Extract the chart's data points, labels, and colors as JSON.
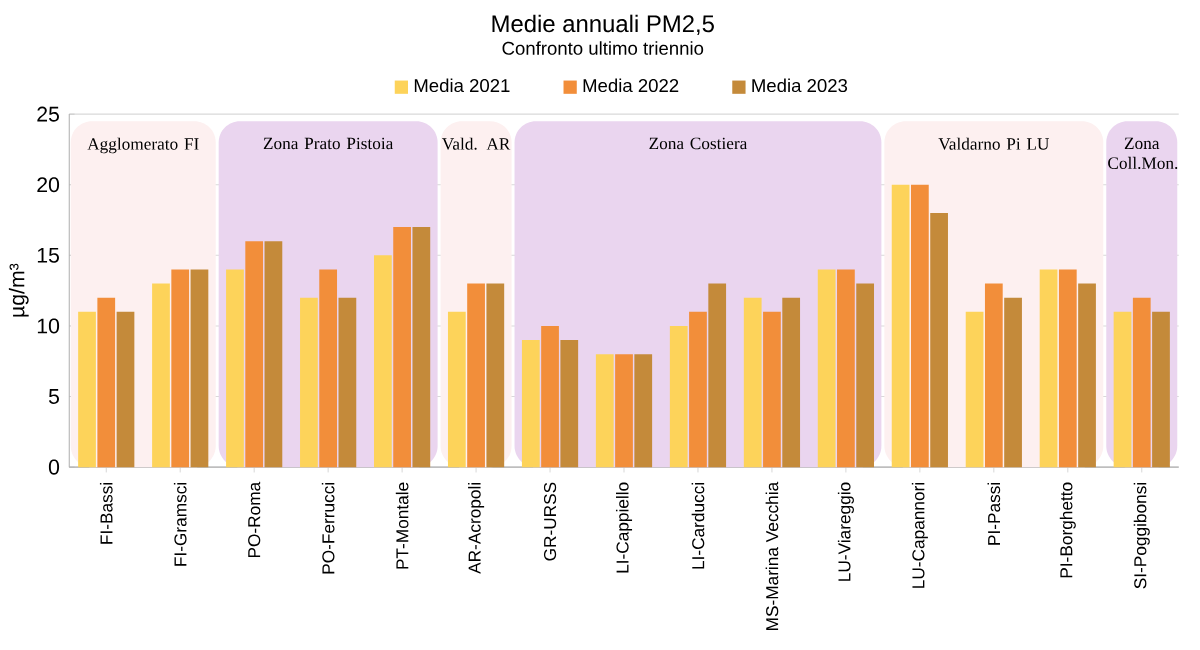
{
  "chart_data": {
    "type": "bar",
    "title": "Medie annuali PM2,5",
    "subtitle": "Confronto ultimo triennio",
    "ylabel": "µg/m³",
    "categories": [
      "FI-Bassi",
      "FI-Gramsci",
      "PO-Roma",
      "PO-Ferrucci",
      "PT-Montale",
      "AR-Acropoli",
      "GR-URSS",
      "LI-Cappiello",
      "LI-Carducci",
      "MS-Marina Vecchia",
      "LU-Viareggio",
      "LU-Capannori",
      "PI-Passi",
      "PI-Borghetto",
      "SI-Poggibonsi"
    ],
    "series": [
      {
        "name": "Media 2021",
        "color": "#fdd35a",
        "values": [
          11,
          13,
          14,
          12,
          15,
          11,
          9,
          8,
          10,
          12,
          14,
          20,
          11,
          14,
          11
        ]
      },
      {
        "name": "Media 2022",
        "color": "#f28e3a",
        "values": [
          12,
          14,
          16,
          14,
          17,
          13,
          10,
          8,
          11,
          11,
          14,
          20,
          13,
          14,
          12
        ]
      },
      {
        "name": "Media 2023",
        "color": "#c48a3a",
        "values": [
          11,
          14,
          16,
          12,
          17,
          13,
          9,
          8,
          13,
          12,
          13,
          18,
          12,
          13,
          11
        ]
      }
    ],
    "bands": [
      {
        "axis": "x",
        "from": "FI-Bassi",
        "to": "FI-Gramsci",
        "label": "Agglomerato FI",
        "color": "#fdf0f0"
      },
      {
        "axis": "x",
        "from": "PO-Roma",
        "to": "PT-Montale",
        "label": "Zona Prato Pistoia",
        "color": "#ead5ef"
      },
      {
        "axis": "x",
        "from": "AR-Acropoli",
        "to": "AR-Acropoli",
        "label": "Vald. AR",
        "color": "#fdf0f0"
      },
      {
        "axis": "x",
        "from": "GR-URSS",
        "to": "LU-Viareggio",
        "label": "Zona Costiera",
        "color": "#ead5ef"
      },
      {
        "axis": "x",
        "from": "LU-Capannori",
        "to": "PI-Borghetto",
        "label": "Valdarno Pi LU",
        "color": "#fdf0f0"
      },
      {
        "axis": "x",
        "from": "SI-Poggibonsi",
        "to": "SI-Poggibonsi",
        "label": "Zona Coll.Mon.",
        "color": "#ead5ef"
      }
    ],
    "ylim": [
      0,
      25
    ],
    "yticks": [
      0,
      5,
      10,
      15,
      20,
      25
    ],
    "grid": "y",
    "legend": "top"
  }
}
